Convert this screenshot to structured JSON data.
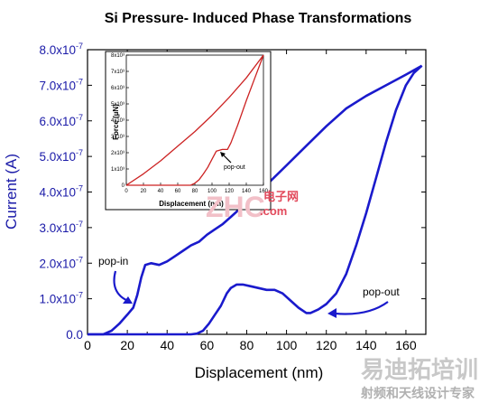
{
  "chart_data": [
    {
      "type": "line",
      "title": "Si Pressure- Induced Phase Transformations",
      "xlabel": "Displacement (nm)",
      "ylabel": "Current (A)",
      "xlim": [
        0,
        170
      ],
      "ylim": [
        0,
        8e-07
      ],
      "x_ticks": [
        "0",
        "20",
        "40",
        "60",
        "80",
        "100",
        "120",
        "140",
        "160"
      ],
      "x_tick_values": [
        0,
        20,
        40,
        60,
        80,
        100,
        120,
        140,
        160
      ],
      "y_ticks": [
        "0.0",
        "1.0x10-7",
        "2.0x10-7",
        "3.0x10-7",
        "4.0x10-7",
        "5.0x10-7",
        "6.0x10-7",
        "7.0x10-7",
        "8.0x10-7"
      ],
      "y_tick_values": [
        0,
        1e-07,
        2e-07,
        3e-07,
        4e-07,
        5e-07,
        6e-07,
        7e-07,
        8e-07
      ],
      "grid": false,
      "color": "#1a1acc",
      "series": [
        {
          "segment": "loading",
          "x": [
            0,
            8,
            12,
            16,
            20,
            23,
            25,
            27,
            29,
            32,
            36,
            40,
            44,
            48,
            52,
            56,
            60,
            64,
            68,
            72,
            76,
            80,
            90,
            100,
            110,
            120,
            130,
            140,
            150,
            160,
            168
          ],
          "y": [
            0,
            0,
            1e-08,
            3e-08,
            5.5e-08,
            7.5e-08,
            1.1e-07,
            1.6e-07,
            1.95e-07,
            2e-07,
            1.95e-07,
            2.05e-07,
            2.2e-07,
            2.35e-07,
            2.5e-07,
            2.6e-07,
            2.8e-07,
            2.95e-07,
            3.1e-07,
            3.3e-07,
            3.5e-07,
            3.7e-07,
            4.2e-07,
            4.75e-07,
            5.3e-07,
            5.85e-07,
            6.35e-07,
            6.7e-07,
            7e-07,
            7.3e-07,
            7.55e-07
          ]
        },
        {
          "segment": "unloading",
          "x": [
            168,
            164,
            160,
            155,
            150,
            145,
            140,
            135,
            130,
            125,
            120,
            116,
            112,
            110,
            106,
            102,
            98,
            94,
            90,
            86,
            82,
            78,
            75,
            72,
            70,
            67,
            64,
            61,
            58,
            55,
            52,
            48,
            40,
            30,
            20,
            10,
            0
          ],
          "y": [
            7.55e-07,
            7.35e-07,
            7e-07,
            6.3e-07,
            5.4e-07,
            4.4e-07,
            3.4e-07,
            2.5e-07,
            1.7e-07,
            1.15e-07,
            8.5e-08,
            7e-08,
            6e-08,
            6e-08,
            7.5e-08,
            9.5e-08,
            1.15e-07,
            1.25e-07,
            1.25e-07,
            1.3e-07,
            1.35e-07,
            1.4e-07,
            1.4e-07,
            1.3e-07,
            1.15e-07,
            8e-08,
            5.5e-08,
            3e-08,
            1e-08,
            2e-09,
            0,
            0,
            0,
            0,
            0,
            0,
            0
          ]
        }
      ],
      "annotations": [
        {
          "text": "pop-in",
          "x": 22,
          "y": 2e-07
        },
        {
          "text": "pop-out",
          "x": 132,
          "y": 1.15e-07
        }
      ]
    },
    {
      "type": "line",
      "xlabel": "Displacement (nm)",
      "ylabel": "Force (µN)",
      "xlim": [
        0,
        160
      ],
      "ylim": [
        0,
        8000
      ],
      "x_ticks": [
        "0",
        "20",
        "40",
        "60",
        "80",
        "100",
        "120",
        "140",
        "160"
      ],
      "x_tick_values": [
        0,
        20,
        40,
        60,
        80,
        100,
        120,
        140,
        160
      ],
      "y_ticks": [
        "0",
        "1x10³",
        "2x10³",
        "3x10³",
        "4x10³",
        "5x10³",
        "6x10³",
        "7x10³",
        "8x10³"
      ],
      "y_tick_values": [
        0,
        1000,
        2000,
        3000,
        4000,
        5000,
        6000,
        7000,
        8000
      ],
      "color": "#cc2222",
      "series": [
        {
          "segment": "loading",
          "x": [
            0,
            20,
            40,
            60,
            80,
            100,
            120,
            140,
            160
          ],
          "y": [
            0,
            700,
            1500,
            2400,
            3300,
            4300,
            5400,
            6600,
            8000
          ]
        },
        {
          "segment": "unloading",
          "x": [
            160,
            150,
            140,
            130,
            122,
            118,
            112,
            105,
            100,
            95,
            90,
            85,
            80,
            75,
            0
          ],
          "y": [
            8000,
            6600,
            5200,
            3700,
            2600,
            2200,
            2200,
            2100,
            1600,
            1100,
            700,
            350,
            120,
            0,
            0
          ]
        }
      ],
      "annotations": [
        {
          "text": "pop-out",
          "x": 120,
          "y": 1000
        }
      ]
    }
  ],
  "watermarks": {
    "mid_cn": "电子网",
    "mid_logo": "ZHC",
    "mid_com": ".com",
    "bottom_cn1": "易迪拓培训",
    "bottom_cn2": "射频和天线设计专家"
  }
}
